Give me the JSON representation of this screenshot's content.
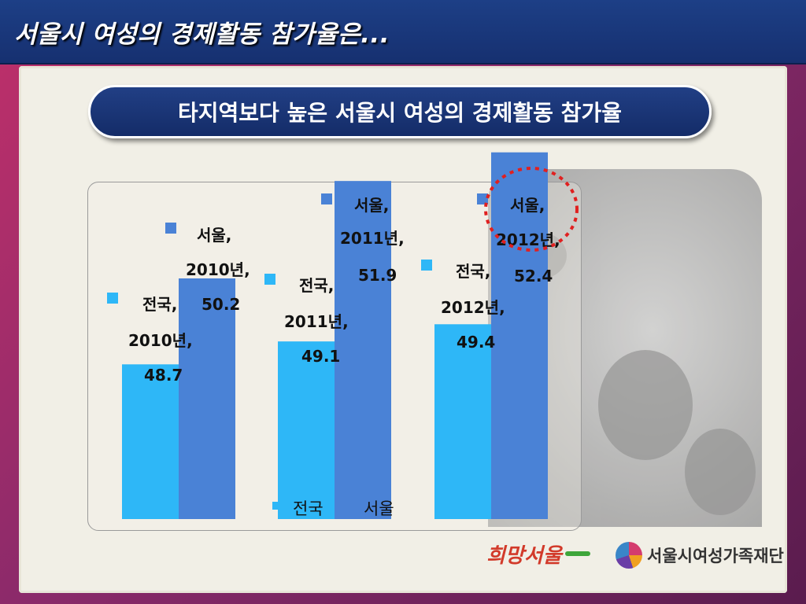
{
  "header": {
    "title": "서울시 여성의 경제활동 참가율은..."
  },
  "subtitle": "타지역보다 높은 서울시 여성의 경제활동 참가율",
  "colors": {
    "national": "#2eb7f7",
    "seoul": "#4a82d6",
    "header_bg": "#1d3f86",
    "highlight_circle": "#e02020"
  },
  "logos": {
    "hope_seoul": "희망서울",
    "foundation": "서울시여성가족재단"
  },
  "chart_data": {
    "type": "bar",
    "categories": [
      "2010년",
      "2011년",
      "2012년"
    ],
    "series": [
      {
        "name": "전국",
        "values": [
          48.7,
          49.1,
          49.4
        ]
      },
      {
        "name": "서울",
        "values": [
          50.2,
          51.9,
          52.4
        ]
      }
    ],
    "data_labels": [
      [
        [
          "전국,",
          "2010년,",
          "48.7"
        ],
        [
          "전국,",
          "2011년,",
          "49.1"
        ],
        [
          "전국,",
          "2012년,",
          "49.4"
        ]
      ],
      [
        [
          "서울,",
          "2010년,",
          "50.2"
        ],
        [
          "서울,",
          "2011년,",
          "51.9"
        ],
        [
          "서울,",
          "2012년,",
          "52.4"
        ]
      ]
    ],
    "ylim": [
      46,
      53
    ],
    "grid": false,
    "legend_position": "bottom",
    "highlighted": {
      "series": 1,
      "category": 2
    }
  }
}
